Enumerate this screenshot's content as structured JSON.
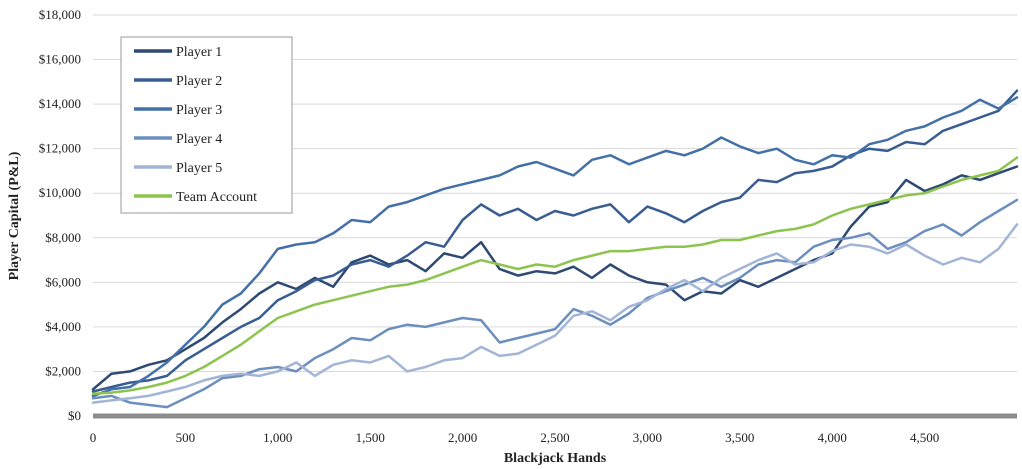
{
  "chart_data": {
    "type": "line",
    "title": "",
    "xlabel": "Blackjack Hands",
    "ylabel": "Player Capital (P&L)",
    "xlim": [
      0,
      5000
    ],
    "ylim": [
      0,
      18000
    ],
    "x_ticks": [
      0,
      500,
      1000,
      1500,
      2000,
      2500,
      3000,
      3500,
      4000,
      4500
    ],
    "x_tick_labels": [
      "0",
      "500",
      "1,000",
      "1,500",
      "2,000",
      "2,500",
      "3,000",
      "3,500",
      "4,000",
      "4,500"
    ],
    "y_ticks": [
      0,
      2000,
      4000,
      6000,
      8000,
      10000,
      12000,
      14000,
      16000,
      18000
    ],
    "y_tick_labels": [
      "$0",
      "$2,000",
      "$4,000",
      "$6,000",
      "$8,000",
      "$10,000",
      "$12,000",
      "$14,000",
      "$16,000",
      "$18,000"
    ],
    "grid": "horizontal",
    "legend_position": "top-left",
    "x": [
      0,
      100,
      200,
      300,
      400,
      500,
      600,
      700,
      800,
      900,
      1000,
      1100,
      1200,
      1300,
      1400,
      1500,
      1600,
      1700,
      1800,
      1900,
      2000,
      2100,
      2200,
      2300,
      2400,
      2500,
      2600,
      2700,
      2800,
      2900,
      3000,
      3100,
      3200,
      3300,
      3400,
      3500,
      3600,
      3700,
      3800,
      3900,
      4000,
      4100,
      4200,
      4300,
      4400,
      4500,
      4600,
      4700,
      4800,
      4900,
      5000
    ],
    "series": [
      {
        "name": "Player 1",
        "color": "#2e4a72",
        "values": [
          1200,
          1900,
          2000,
          2300,
          2500,
          3000,
          3500,
          4200,
          4800,
          5500,
          6000,
          5700,
          6200,
          5800,
          6900,
          7200,
          6800,
          7000,
          6500,
          7300,
          7100,
          7800,
          6600,
          6300,
          6500,
          6400,
          6700,
          6200,
          6800,
          6300,
          6000,
          5900,
          5200,
          5600,
          5500,
          6100,
          5800,
          6200,
          6600,
          7000,
          7300,
          8500,
          9400,
          9600,
          10600,
          10100,
          10400,
          10800,
          10600,
          10900,
          11200
        ]
      },
      {
        "name": "Player 2",
        "color": "#395d92",
        "values": [
          1100,
          1300,
          1500,
          1600,
          1800,
          2500,
          3000,
          3500,
          4000,
          4400,
          5200,
          5600,
          6100,
          6300,
          6800,
          7000,
          6700,
          7200,
          7800,
          7600,
          8800,
          9500,
          9000,
          9300,
          8800,
          9200,
          9000,
          9300,
          9500,
          8700,
          9400,
          9100,
          8700,
          9200,
          9600,
          9800,
          10600,
          10500,
          10900,
          11000,
          11200,
          11700,
          12000,
          11900,
          12300,
          12200,
          12800,
          13100,
          13400,
          13700,
          14600
        ]
      },
      {
        "name": "Player 3",
        "color": "#4470a8",
        "values": [
          900,
          1200,
          1300,
          1800,
          2400,
          3200,
          4000,
          5000,
          5500,
          6400,
          7500,
          7700,
          7800,
          8200,
          8800,
          8700,
          9400,
          9600,
          9900,
          10200,
          10400,
          10600,
          10800,
          11200,
          11400,
          11100,
          10800,
          11500,
          11700,
          11300,
          11600,
          11900,
          11700,
          12000,
          12500,
          12100,
          11800,
          12000,
          11500,
          11300,
          11700,
          11600,
          12200,
          12400,
          12800,
          13000,
          13400,
          13700,
          14200,
          13800,
          14300
        ]
      },
      {
        "name": "Player 4",
        "color": "#6d8fbf",
        "values": [
          800,
          900,
          600,
          500,
          400,
          800,
          1200,
          1700,
          1800,
          2100,
          2200,
          2000,
          2600,
          3000,
          3500,
          3400,
          3900,
          4100,
          4000,
          4200,
          4400,
          4300,
          3300,
          3500,
          3700,
          3900,
          4800,
          4500,
          4100,
          4600,
          5300,
          5600,
          5900,
          6200,
          5800,
          6200,
          6800,
          7000,
          6900,
          7600,
          7900,
          8000,
          8200,
          7500,
          7800,
          8300,
          8600,
          8100,
          8700,
          9200,
          9700
        ]
      },
      {
        "name": "Player 5",
        "color": "#a2b5d6",
        "values": [
          600,
          700,
          800,
          900,
          1100,
          1300,
          1600,
          1800,
          1900,
          1800,
          2000,
          2400,
          1800,
          2300,
          2500,
          2400,
          2700,
          2000,
          2200,
          2500,
          2600,
          3100,
          2700,
          2800,
          3200,
          3600,
          4500,
          4700,
          4300,
          4900,
          5200,
          5700,
          6100,
          5600,
          6200,
          6600,
          7000,
          7300,
          6800,
          6900,
          7400,
          7700,
          7600,
          7300,
          7700,
          7200,
          6800,
          7100,
          6900,
          7500,
          8600
        ]
      },
      {
        "name": "Team Account",
        "color": "#8dc44e",
        "values": [
          1000,
          1050,
          1150,
          1300,
          1500,
          1800,
          2200,
          2700,
          3200,
          3800,
          4400,
          4700,
          5000,
          5200,
          5400,
          5600,
          5800,
          5900,
          6100,
          6400,
          6700,
          7000,
          6800,
          6600,
          6800,
          6700,
          7000,
          7200,
          7400,
          7400,
          7500,
          7600,
          7600,
          7700,
          7900,
          7900,
          8100,
          8300,
          8400,
          8600,
          9000,
          9300,
          9500,
          9700,
          9900,
          10000,
          10300,
          10600,
          10800,
          11000,
          11600
        ]
      }
    ]
  }
}
